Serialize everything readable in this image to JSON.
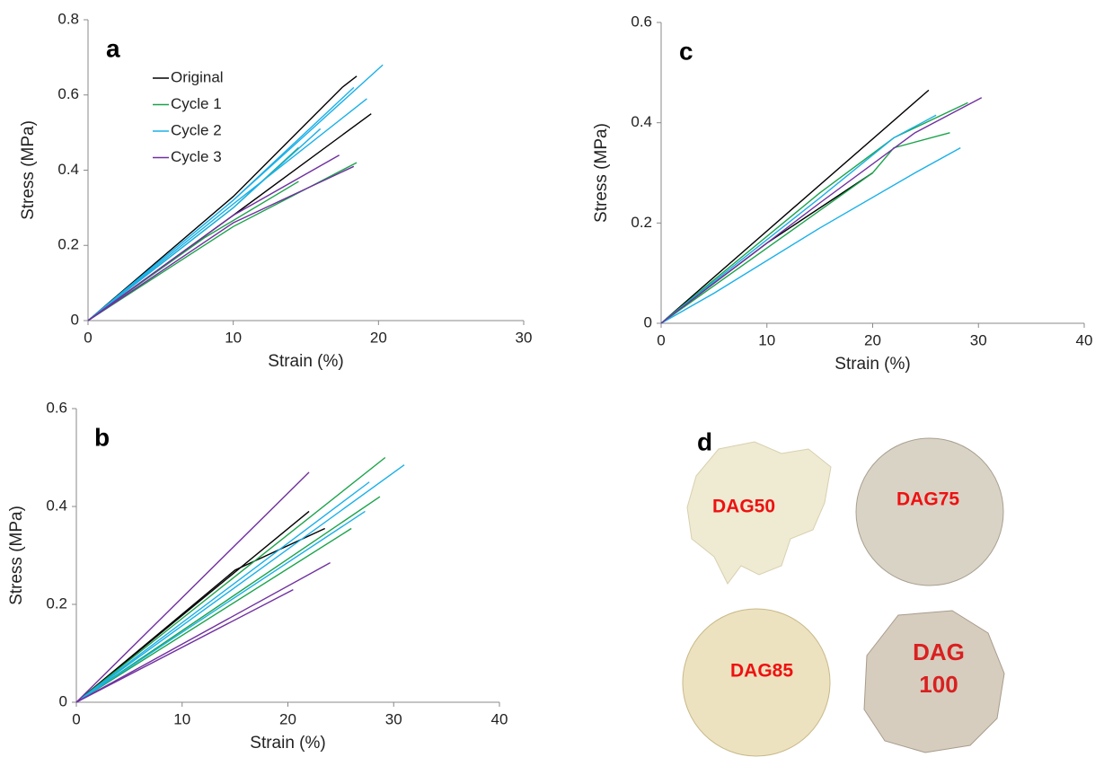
{
  "chart_data": [
    {
      "type": "line",
      "panel": "a",
      "xlabel": "Strain (%)",
      "ylabel": "Stress (MPa)",
      "xlim": [
        0,
        30
      ],
      "ylim": [
        0,
        0.8
      ],
      "xticks": [
        0,
        10,
        20,
        30
      ],
      "yticks": [
        0,
        0.2,
        0.4,
        0.6,
        0.8
      ],
      "series": [
        {
          "name": "Original",
          "color": "#000000",
          "x": [
            0,
            10,
            17.5,
            18.5
          ],
          "values": [
            0,
            0.33,
            0.62,
            0.65
          ]
        },
        {
          "color": "#000000",
          "x": [
            0,
            10,
            19.5
          ],
          "values": [
            0,
            0.28,
            0.55
          ]
        },
        {
          "name": "Cycle 1",
          "color": "#1aa34a",
          "x": [
            0,
            10,
            18.5
          ],
          "values": [
            0,
            0.25,
            0.42
          ]
        },
        {
          "color": "#1aa34a",
          "x": [
            0,
            8,
            14.5
          ],
          "values": [
            0,
            0.22,
            0.37
          ]
        },
        {
          "color": "#1aa34a",
          "x": [
            0,
            10,
            14.5
          ],
          "values": [
            0,
            0.3,
            0.46
          ]
        },
        {
          "name": "Cycle 2",
          "color": "#1ab0e8",
          "x": [
            0,
            10,
            20.3
          ],
          "values": [
            0,
            0.32,
            0.68
          ]
        },
        {
          "color": "#1ab0e8",
          "x": [
            0,
            10,
            19.2
          ],
          "values": [
            0,
            0.31,
            0.59
          ]
        },
        {
          "color": "#1ab0e8",
          "x": [
            0,
            10,
            18.3
          ],
          "values": [
            0,
            0.32,
            0.62
          ]
        },
        {
          "color": "#1ab0e8",
          "x": [
            0,
            10,
            16
          ],
          "values": [
            0,
            0.3,
            0.51
          ]
        },
        {
          "name": "Cycle 3",
          "color": "#7030a0",
          "x": [
            0,
            10,
            17.3
          ],
          "values": [
            0,
            0.28,
            0.44
          ]
        },
        {
          "color": "#7030a0",
          "x": [
            0,
            10,
            18.3
          ],
          "values": [
            0,
            0.26,
            0.41
          ]
        }
      ]
    },
    {
      "type": "line",
      "panel": "b",
      "xlabel": "Strain (%)",
      "ylabel": "Stress (MPa)",
      "xlim": [
        0,
        40
      ],
      "ylim": [
        0,
        0.6
      ],
      "xticks": [
        0,
        10,
        20,
        30,
        40
      ],
      "yticks": [
        0,
        0.2,
        0.4,
        0.6
      ],
      "series": [
        {
          "color": "#000000",
          "x": [
            0,
            22
          ],
          "values": [
            0,
            0.39
          ]
        },
        {
          "color": "#000000",
          "x": [
            0,
            15,
            23.5
          ],
          "values": [
            0,
            0.27,
            0.355
          ]
        },
        {
          "color": "#1aa34a",
          "x": [
            0,
            29.2
          ],
          "values": [
            0,
            0.5
          ]
        },
        {
          "color": "#1aa34a",
          "x": [
            0,
            28.7
          ],
          "values": [
            0,
            0.42
          ]
        },
        {
          "color": "#1aa34a",
          "x": [
            0,
            26
          ],
          "values": [
            0,
            0.355
          ]
        },
        {
          "color": "#1ab0e8",
          "x": [
            0,
            31
          ],
          "values": [
            0,
            0.485
          ]
        },
        {
          "color": "#1ab0e8",
          "x": [
            0,
            27.7
          ],
          "values": [
            0,
            0.45
          ]
        },
        {
          "color": "#1ab0e8",
          "x": [
            0,
            27.3
          ],
          "values": [
            0,
            0.39
          ]
        },
        {
          "color": "#7030a0",
          "x": [
            0,
            22
          ],
          "values": [
            0,
            0.47
          ]
        },
        {
          "color": "#7030a0",
          "x": [
            0,
            24
          ],
          "values": [
            0,
            0.285
          ]
        },
        {
          "color": "#7030a0",
          "x": [
            0,
            20.5
          ],
          "values": [
            0,
            0.23
          ]
        }
      ]
    },
    {
      "type": "line",
      "panel": "c",
      "xlabel": "Strain (%)",
      "ylabel": "Stress (MPa)",
      "xlim": [
        0,
        40
      ],
      "ylim": [
        0,
        0.6
      ],
      "xticks": [
        0,
        10,
        20,
        30,
        40
      ],
      "yticks": [
        0,
        0.2,
        0.4,
        0.6
      ],
      "series": [
        {
          "color": "#000000",
          "x": [
            0,
            12.5,
            25.3
          ],
          "values": [
            0,
            0.23,
            0.465
          ]
        },
        {
          "color": "#000000",
          "x": [
            0,
            10,
            20
          ],
          "values": [
            0,
            0.16,
            0.3
          ]
        },
        {
          "color": "#1aa34a",
          "x": [
            0,
            20,
            22,
            27.3
          ],
          "values": [
            0,
            0.3,
            0.35,
            0.38
          ]
        },
        {
          "color": "#1aa34a",
          "x": [
            0,
            15,
            22,
            29
          ],
          "values": [
            0,
            0.26,
            0.37,
            0.44
          ]
        },
        {
          "color": "#1ab0e8",
          "x": [
            0,
            5,
            15,
            24,
            28.3
          ],
          "values": [
            0,
            0.06,
            0.19,
            0.3,
            0.35
          ]
        },
        {
          "color": "#1ab0e8",
          "x": [
            0,
            15,
            22,
            26
          ],
          "values": [
            0,
            0.25,
            0.37,
            0.415
          ]
        },
        {
          "color": "#7030a0",
          "x": [
            0,
            15,
            24,
            30.3
          ],
          "values": [
            0,
            0.24,
            0.38,
            0.45
          ]
        }
      ]
    }
  ],
  "panel_d": {
    "label": "d",
    "samples": [
      "DAG50",
      "DAG75",
      "DAG85",
      [
        "DAG",
        "100"
      ]
    ]
  }
}
